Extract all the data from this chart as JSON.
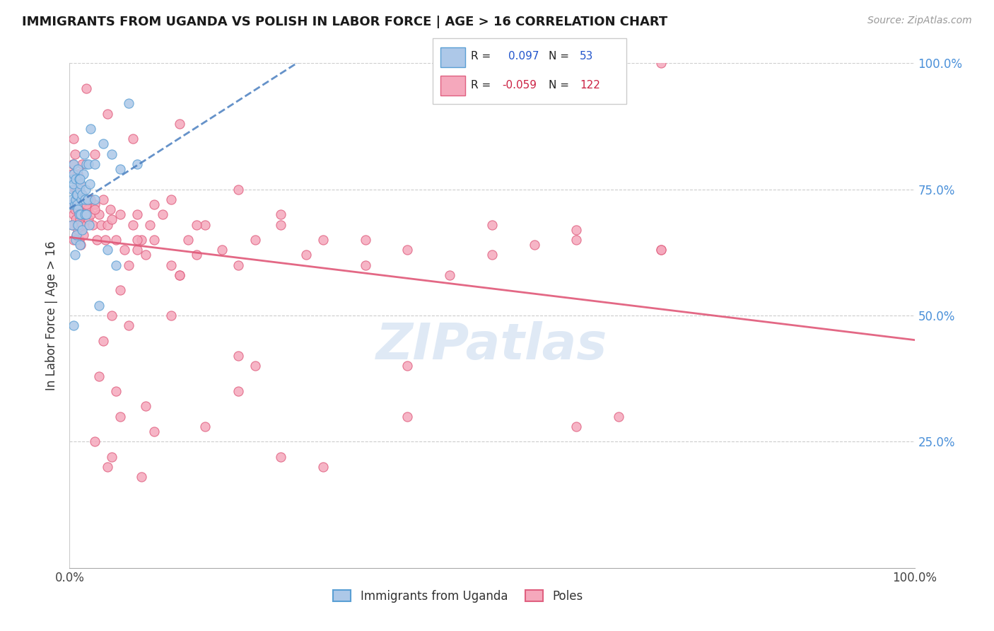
{
  "title": "IMMIGRANTS FROM UGANDA VS POLISH IN LABOR FORCE | AGE > 16 CORRELATION CHART",
  "source": "Source: ZipAtlas.com",
  "ylabel": "In Labor Force | Age > 16",
  "legend_label_bottom_blue": "Immigrants from Uganda",
  "legend_label_bottom_pink": "Poles",
  "blue_fill": "#adc8e8",
  "blue_edge": "#5a9fd4",
  "blue_line": "#4a7fc0",
  "pink_fill": "#f5a8bc",
  "pink_edge": "#e06080",
  "pink_line": "#e05878",
  "right_tick_color": "#4a90d9",
  "watermark": "ZIPatlas",
  "blue_scatter_x": [
    0.002,
    0.003,
    0.003,
    0.004,
    0.004,
    0.005,
    0.005,
    0.005,
    0.006,
    0.006,
    0.007,
    0.007,
    0.007,
    0.008,
    0.008,
    0.009,
    0.009,
    0.01,
    0.01,
    0.01,
    0.011,
    0.011,
    0.012,
    0.012,
    0.013,
    0.013,
    0.014,
    0.015,
    0.015,
    0.016,
    0.017,
    0.018,
    0.018,
    0.019,
    0.02,
    0.021,
    0.022,
    0.023,
    0.024,
    0.025,
    0.03,
    0.035,
    0.04,
    0.045,
    0.05,
    0.055,
    0.06,
    0.07,
    0.08,
    0.03,
    0.005,
    0.012,
    0.02
  ],
  "blue_scatter_y": [
    0.72,
    0.73,
    0.68,
    0.75,
    0.77,
    0.78,
    0.76,
    0.8,
    0.62,
    0.72,
    0.65,
    0.73,
    0.77,
    0.66,
    0.74,
    0.74,
    0.72,
    0.68,
    0.71,
    0.79,
    0.7,
    0.77,
    0.64,
    0.75,
    0.7,
    0.76,
    0.73,
    0.74,
    0.67,
    0.78,
    0.82,
    0.7,
    0.73,
    0.75,
    0.8,
    0.73,
    0.8,
    0.68,
    0.76,
    0.87,
    0.8,
    0.52,
    0.84,
    0.63,
    0.82,
    0.6,
    0.79,
    0.92,
    0.8,
    0.73,
    0.48,
    0.77,
    0.7
  ],
  "pink_scatter_x": [
    0.003,
    0.004,
    0.005,
    0.005,
    0.006,
    0.006,
    0.007,
    0.007,
    0.008,
    0.008,
    0.009,
    0.009,
    0.01,
    0.01,
    0.011,
    0.011,
    0.012,
    0.012,
    0.013,
    0.013,
    0.014,
    0.015,
    0.015,
    0.016,
    0.017,
    0.018,
    0.019,
    0.02,
    0.021,
    0.022,
    0.023,
    0.025,
    0.027,
    0.03,
    0.032,
    0.035,
    0.037,
    0.04,
    0.042,
    0.045,
    0.048,
    0.05,
    0.055,
    0.06,
    0.065,
    0.07,
    0.075,
    0.08,
    0.085,
    0.09,
    0.095,
    0.1,
    0.11,
    0.12,
    0.13,
    0.14,
    0.15,
    0.16,
    0.18,
    0.2,
    0.22,
    0.25,
    0.28,
    0.3,
    0.35,
    0.4,
    0.45,
    0.5,
    0.55,
    0.6,
    0.65,
    0.7,
    0.003,
    0.004,
    0.006,
    0.008,
    0.012,
    0.015,
    0.02,
    0.025,
    0.03,
    0.05,
    0.08,
    0.12,
    0.2,
    0.005,
    0.01,
    0.03,
    0.06,
    0.1,
    0.15,
    0.25,
    0.35,
    0.5,
    0.6,
    0.7,
    0.04,
    0.07,
    0.12,
    0.2,
    0.4,
    0.6,
    0.03,
    0.06,
    0.1,
    0.2,
    0.4,
    0.035,
    0.055,
    0.09,
    0.16,
    0.3,
    0.05,
    0.08,
    0.13,
    0.22,
    0.02,
    0.045,
    0.075,
    0.13,
    0.25,
    0.045,
    0.085,
    0.7
  ],
  "pink_scatter_y": [
    0.68,
    0.72,
    0.7,
    0.65,
    0.71,
    0.75,
    0.69,
    0.73,
    0.66,
    0.72,
    0.68,
    0.74,
    0.67,
    0.71,
    0.65,
    0.73,
    0.69,
    0.76,
    0.64,
    0.72,
    0.7,
    0.68,
    0.74,
    0.66,
    0.72,
    0.7,
    0.73,
    0.68,
    0.71,
    0.69,
    0.73,
    0.7,
    0.68,
    0.72,
    0.65,
    0.7,
    0.68,
    0.73,
    0.65,
    0.68,
    0.71,
    0.5,
    0.65,
    0.55,
    0.63,
    0.6,
    0.68,
    0.7,
    0.65,
    0.62,
    0.68,
    0.65,
    0.7,
    0.6,
    0.58,
    0.65,
    0.62,
    0.68,
    0.63,
    0.6,
    0.65,
    0.68,
    0.62,
    0.65,
    0.6,
    0.63,
    0.58,
    0.62,
    0.64,
    0.67,
    0.3,
    0.63,
    0.78,
    0.8,
    0.82,
    0.75,
    0.76,
    0.8,
    0.72,
    0.73,
    0.71,
    0.69,
    0.65,
    0.73,
    0.75,
    0.85,
    0.78,
    0.82,
    0.7,
    0.72,
    0.68,
    0.7,
    0.65,
    0.68,
    0.65,
    0.63,
    0.45,
    0.48,
    0.5,
    0.42,
    0.4,
    0.28,
    0.25,
    0.3,
    0.27,
    0.35,
    0.3,
    0.38,
    0.35,
    0.32,
    0.28,
    0.2,
    0.22,
    0.63,
    0.58,
    0.4,
    0.95,
    0.9,
    0.85,
    0.88,
    0.22,
    0.2,
    0.18,
    1.0
  ]
}
